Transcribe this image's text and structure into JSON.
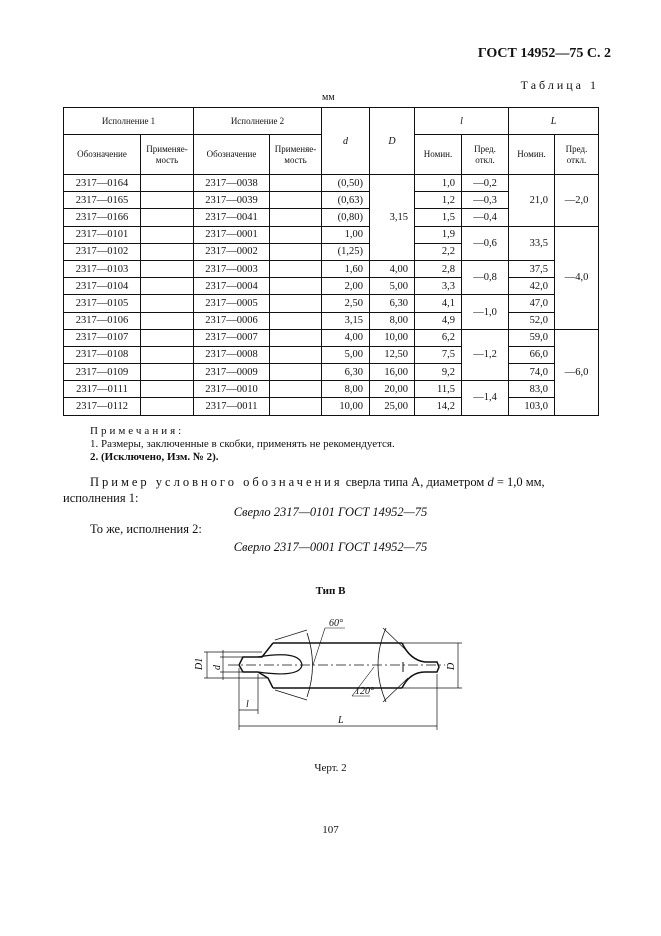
{
  "header": "ГОСТ 14952—75 С. 2",
  "table_label": "Таблица 1",
  "unit": "мм",
  "table": {
    "group_headers": {
      "isp1": "Исполнение 1",
      "isp2": "Исполнение 2",
      "d": "d",
      "D": "D",
      "l": "l",
      "L": "L"
    },
    "sub_headers": {
      "oboz": "Обозначение",
      "prim": "Применяе-мость",
      "nom": "Номин.",
      "pred": "Пред. откл."
    },
    "rows": [
      {
        "isp1": "2317—0164",
        "isp2": "2317—0038",
        "d": "(0,50)",
        "l": "1,0"
      },
      {
        "isp1": "2317—0165",
        "isp2": "2317—0039",
        "d": "(0,63)",
        "l": "1,2"
      },
      {
        "isp1": "2317—0166",
        "isp2": "2317—0041",
        "d": "(0,80)",
        "l": "1,5"
      },
      {
        "isp1": "2317—0101",
        "isp2": "2317—0001",
        "d": "1,00",
        "l": "1,9"
      },
      {
        "isp1": "2317—0102",
        "isp2": "2317—0002",
        "d": "(1,25)",
        "l": "2,2"
      },
      {
        "isp1": "2317—0103",
        "isp2": "2317—0003",
        "d": "1,60",
        "l": "2,8"
      },
      {
        "isp1": "2317—0104",
        "isp2": "2317—0004",
        "d": "2,00",
        "l": "3,3"
      },
      {
        "isp1": "2317—0105",
        "isp2": "2317—0005",
        "d": "2,50",
        "l": "4,1"
      },
      {
        "isp1": "2317—0106",
        "isp2": "2317—0006",
        "d": "3,15",
        "l": "4,9"
      },
      {
        "isp1": "2317—0107",
        "isp2": "2317—0007",
        "d": "4,00",
        "l": "6,2"
      },
      {
        "isp1": "2317—0108",
        "isp2": "2317—0008",
        "d": "5,00",
        "l": "7,5"
      },
      {
        "isp1": "2317—0109",
        "isp2": "2317—0009",
        "d": "6,30",
        "l": "9,2"
      },
      {
        "isp1": "2317—0111",
        "isp2": "2317—0010",
        "d": "8,00",
        "l": "11,5"
      },
      {
        "isp1": "2317—0112",
        "isp2": "2317—0011",
        "d": "10,00",
        "l": "14,2"
      }
    ],
    "D_groups": [
      {
        "value": "3,15",
        "rows": 5
      },
      {
        "value": "4,00",
        "rows": 1
      },
      {
        "value": "5,00",
        "rows": 1
      },
      {
        "value": "6,30",
        "rows": 1
      },
      {
        "value": "8,00",
        "rows": 1
      },
      {
        "value": "10,00",
        "rows": 1
      },
      {
        "value": "12,50",
        "rows": 1
      },
      {
        "value": "16,00",
        "rows": 1
      },
      {
        "value": "20,00",
        "rows": 1
      },
      {
        "value": "25,00",
        "rows": 1
      }
    ],
    "l_tol_groups": [
      {
        "value": "—0,2",
        "rows": 1
      },
      {
        "value": "—0,3",
        "rows": 1
      },
      {
        "value": "—0,4",
        "rows": 1
      },
      {
        "value": "—0,6",
        "rows": 2
      },
      {
        "value": "—0,8",
        "rows": 2
      },
      {
        "value": "—1,0",
        "rows": 2
      },
      {
        "value": "—1,2",
        "rows": 3
      },
      {
        "value": "—1,4",
        "rows": 2
      }
    ],
    "L_groups": [
      {
        "value": "21,0",
        "rows": 3
      },
      {
        "value": "33,5",
        "rows": 2
      },
      {
        "value": "37,5",
        "rows": 1
      },
      {
        "value": "42,0",
        "rows": 1
      },
      {
        "value": "47,0",
        "rows": 1
      },
      {
        "value": "52,0",
        "rows": 1
      },
      {
        "value": "59,0",
        "rows": 1
      },
      {
        "value": "66,0",
        "rows": 1
      },
      {
        "value": "74,0",
        "rows": 1
      },
      {
        "value": "83,0",
        "rows": 1
      },
      {
        "value": "103,0",
        "rows": 1
      }
    ],
    "L_tol_groups": [
      {
        "value": "—2,0",
        "rows": 3
      },
      {
        "value": "—4,0",
        "rows": 6
      },
      {
        "value": "—6,0",
        "rows": 5
      }
    ]
  },
  "notes": {
    "title": "Примечания:",
    "items": [
      "1. Размеры, заключенные в скобки, применять не рекомендуется.",
      "2. (Исключено, Изм. № 2)."
    ]
  },
  "example": {
    "lead": "Пример условного обозначения",
    "text1": " сверла типа А, диаметром ",
    "d": "d",
    "text2": " = 1,0 мм, исполнения 1:",
    "designation1": "Сверло 2317—0101 ГОСТ 14952—75",
    "same": "То же, исполнения 2:",
    "designation2": "Сверло 2317—0001 ГОСТ 14952—75"
  },
  "figure": {
    "title": "Тип В",
    "labels": {
      "angle1": "60°",
      "angle2": "120°",
      "D1": "D1",
      "d": "d",
      "D": "D",
      "l": "l",
      "L": "L"
    },
    "caption": "Черт. 2"
  },
  "page_number": "107"
}
